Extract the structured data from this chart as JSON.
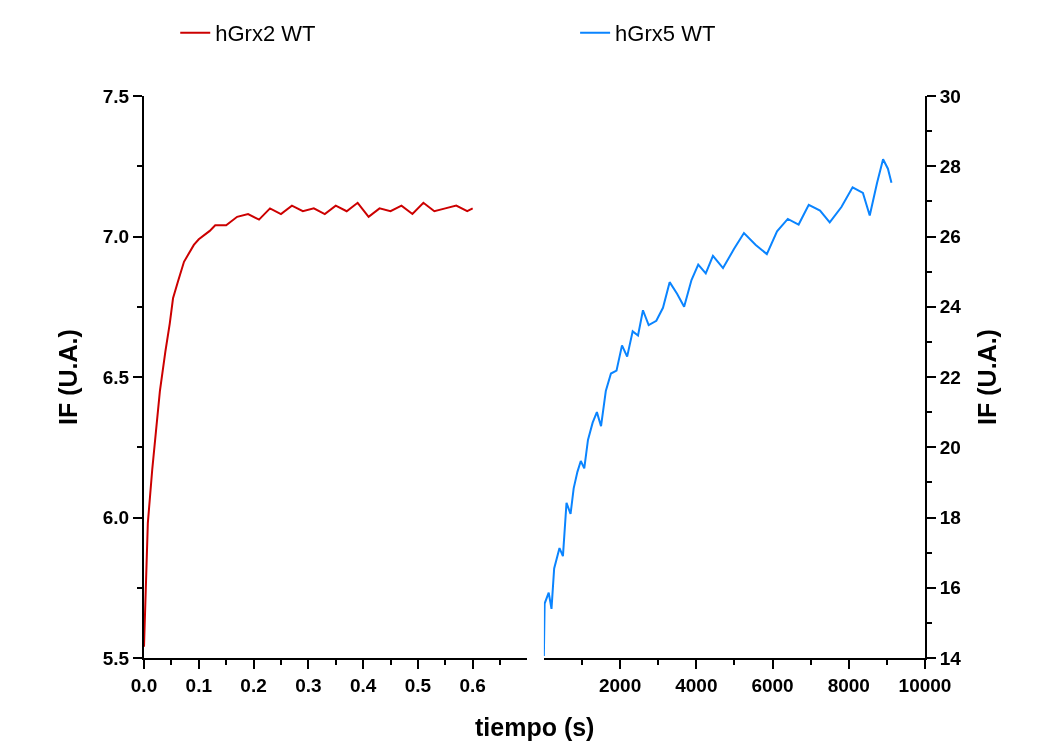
{
  "chart_data": [
    {
      "type": "line",
      "ylabel": "IF (U.A.)",
      "xlabel": "tiempo (s)",
      "xlim": [
        0,
        0.7
      ],
      "ylim": [
        5.5,
        7.5
      ],
      "xticks": [
        {
          "value": 0,
          "label": "0.0"
        },
        {
          "value": 0.1,
          "label": "0.1"
        },
        {
          "value": 0.2,
          "label": "0.2"
        },
        {
          "value": 0.3,
          "label": "0.3"
        },
        {
          "value": 0.4,
          "label": "0.4"
        },
        {
          "value": 0.5,
          "label": "0.5"
        },
        {
          "value": 0.6,
          "label": "0.6"
        }
      ],
      "yticks": [
        {
          "value": 5.5,
          "label": "5.5"
        },
        {
          "value": 6,
          "label": "6.0"
        },
        {
          "value": 6.5,
          "label": "6.5"
        },
        {
          "value": 7,
          "label": "7.0"
        },
        {
          "value": 7.5,
          "label": "7.5"
        }
      ],
      "legend": "top",
      "series": [
        {
          "name": "hGrx2 WT",
          "color": "#cc0000",
          "x": [
            0,
            0.007,
            0.015,
            0.022,
            0.029,
            0.039,
            0.047,
            0.053,
            0.062,
            0.073,
            0.091,
            0.1,
            0.12,
            0.13,
            0.15,
            0.17,
            0.19,
            0.21,
            0.23,
            0.25,
            0.27,
            0.29,
            0.31,
            0.33,
            0.35,
            0.37,
            0.39,
            0.41,
            0.43,
            0.45,
            0.47,
            0.49,
            0.51,
            0.53,
            0.55,
            0.57,
            0.59,
            0.6
          ],
          "values": [
            5.54,
            5.98,
            6.17,
            6.31,
            6.45,
            6.59,
            6.69,
            6.78,
            6.84,
            6.91,
            6.97,
            6.99,
            7.02,
            7.04,
            7.04,
            7.07,
            7.08,
            7.06,
            7.1,
            7.08,
            7.11,
            7.09,
            7.1,
            7.08,
            7.11,
            7.09,
            7.12,
            7.07,
            7.1,
            7.09,
            7.11,
            7.08,
            7.12,
            7.09,
            7.1,
            7.11,
            7.09,
            7.1
          ]
        }
      ]
    },
    {
      "type": "line",
      "y2label": "IF (U.A.)",
      "xlim": [
        0,
        10000
      ],
      "y2lim": [
        14,
        30
      ],
      "xticks": [
        {
          "value": 2000,
          "label": "2000"
        },
        {
          "value": 4000,
          "label": "4000"
        },
        {
          "value": 6000,
          "label": "6000"
        },
        {
          "value": 8000,
          "label": "8000"
        },
        {
          "value": 10000,
          "label": "10000"
        }
      ],
      "y2ticks": [
        14,
        16,
        18,
        20,
        22,
        24,
        26,
        28,
        30
      ],
      "legend": "top",
      "series": [
        {
          "name": "hGrx5 WT",
          "color": "#0a84ff",
          "axis": "y2",
          "x": [
            0,
            20,
            127,
            200,
            270,
            410,
            500,
            594,
            700,
            782,
            880,
            969,
            1060,
            1157,
            1280,
            1391,
            1500,
            1625,
            1760,
            1906,
            2050,
            2185,
            2330,
            2470,
            2600,
            2750,
            2950,
            3125,
            3300,
            3495,
            3680,
            3873,
            4050,
            4248,
            4436,
            4700,
            4991,
            5250,
            5559,
            5850,
            6118,
            6400,
            6684,
            6950,
            7246,
            7500,
            7807,
            8100,
            8371,
            8550,
            8743,
            8900,
            9027,
            9120
          ],
          "values": [
            14.06,
            15.55,
            15.86,
            15.4,
            16.55,
            17.13,
            16.9,
            18.42,
            18.1,
            18.83,
            19.3,
            19.61,
            19.4,
            20.21,
            20.7,
            21.0,
            20.6,
            21.6,
            22.1,
            22.18,
            22.9,
            22.58,
            23.3,
            23.18,
            23.9,
            23.48,
            23.6,
            23.97,
            24.7,
            24.37,
            24.0,
            24.76,
            25.2,
            24.95,
            25.45,
            25.1,
            25.65,
            26.1,
            25.76,
            25.5,
            26.15,
            26.5,
            26.34,
            26.9,
            26.74,
            26.4,
            26.84,
            27.4,
            27.24,
            26.6,
            27.53,
            28.2,
            27.93,
            27.53
          ]
        }
      ]
    }
  ]
}
